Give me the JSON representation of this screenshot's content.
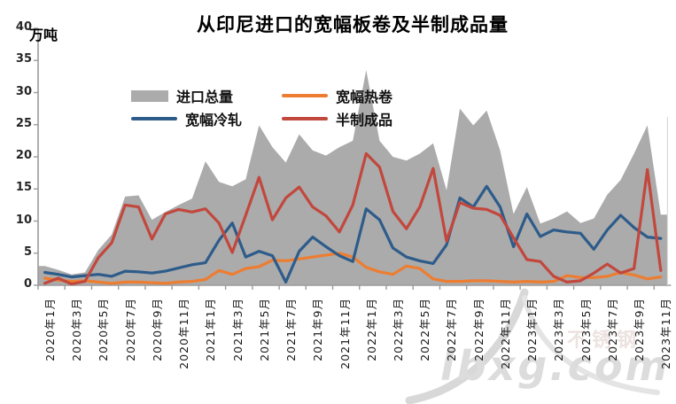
{
  "title": "从印尼进口的宽幅板卷及半制成品量",
  "y_axis": {
    "unit_label": "万吨",
    "tick_values": [
      0,
      5,
      10,
      15,
      20,
      25,
      30,
      35,
      40
    ]
  },
  "x_axis": {
    "tick_labels": [
      "2020年1月",
      "2020年3月",
      "2020年5月",
      "2020年7月",
      "2020年9月",
      "2020年11月",
      "2021年1月",
      "2021年3月",
      "2021年5月",
      "2021年7月",
      "2021年9月",
      "2021年11月",
      "2022年1月",
      "2022年3月",
      "2022年5月",
      "2022年7月",
      "2022年9月",
      "2022年11月",
      "2023年1月",
      "2023年3月",
      "2023年5月",
      "2023年7月",
      "2023年9月",
      "2023年11月"
    ]
  },
  "legend": [
    {
      "label": "进口总量",
      "color": "#ABABAB",
      "swatch": "area"
    },
    {
      "label": "宽幅热卷",
      "color": "#ED7D31",
      "swatch": "line"
    },
    {
      "label": "宽幅冷轧",
      "color": "#2E5C8A",
      "swatch": "line"
    },
    {
      "label": "半制成品",
      "color": "#C2473D",
      "swatch": "line"
    }
  ],
  "watermark": {
    "text": "lbxg.com",
    "side_text": "不锈钢"
  },
  "chart_data": {
    "type": "area",
    "note": "gray total is an area series; other three are lines; y in 万吨 (10k tons)",
    "ylim": [
      0,
      40
    ],
    "x": [
      "2020年1月",
      "2020年2月",
      "2020年3月",
      "2020年4月",
      "2020年5月",
      "2020年6月",
      "2020年7月",
      "2020年8月",
      "2020年9月",
      "2020年10月",
      "2020年11月",
      "2020年12月",
      "2021年1月",
      "2021年2月",
      "2021年3月",
      "2021年4月",
      "2021年5月",
      "2021年6月",
      "2021年7月",
      "2021年8月",
      "2021年9月",
      "2021年10月",
      "2021年11月",
      "2021年12月",
      "2022年1月",
      "2022年2月",
      "2022年3月",
      "2022年4月",
      "2022年5月",
      "2022年6月",
      "2022年7月",
      "2022年8月",
      "2022年9月",
      "2022年10月",
      "2022年11月",
      "2022年12月",
      "2023年1月",
      "2023年2月",
      "2023年3月",
      "2023年4月",
      "2023年5月",
      "2023年6月",
      "2023年7月",
      "2023年8月",
      "2023年9月",
      "2023年10月",
      "2023年11月"
    ],
    "series": [
      {
        "name": "进口总量",
        "type": "area",
        "color": "#ABABAB",
        "values": [
          3.0,
          2.4,
          1.7,
          2.0,
          5.5,
          7.9,
          13.8,
          14.0,
          10.2,
          11.4,
          12.5,
          13.5,
          19.3,
          16.1,
          15.4,
          16.5,
          24.9,
          21.5,
          19.1,
          23.5,
          21.0,
          20.2,
          21.5,
          22.5,
          33.5,
          22.5,
          20.0,
          19.4,
          20.5,
          22.1,
          14.8,
          27.5,
          24.9,
          27.2,
          21.0,
          11.1,
          15.3,
          9.6,
          10.4,
          11.5,
          9.7,
          10.4,
          14.1,
          16.4,
          20.5,
          24.9,
          11.0
        ]
      },
      {
        "name": "宽幅热卷",
        "type": "line",
        "color": "#ED7D31",
        "values": [
          1.1,
          0.8,
          0.6,
          0.7,
          0.5,
          0.3,
          0.5,
          0.5,
          0.4,
          0.3,
          0.5,
          0.6,
          0.9,
          2.3,
          1.7,
          2.6,
          2.9,
          3.9,
          3.8,
          4.1,
          4.4,
          4.7,
          5.0,
          4.4,
          2.8,
          2.1,
          1.7,
          3.0,
          2.6,
          1.0,
          0.6,
          0.6,
          0.7,
          0.7,
          0.6,
          0.5,
          0.6,
          0.5,
          0.6,
          1.5,
          1.2,
          1.2,
          1.4,
          2.0,
          1.6,
          1.0,
          1.3
        ]
      },
      {
        "name": "宽幅冷轧",
        "type": "line",
        "color": "#2E5C8A",
        "values": [
          2.0,
          1.7,
          1.3,
          1.5,
          1.7,
          1.4,
          2.2,
          2.1,
          1.9,
          2.2,
          2.7,
          3.2,
          3.5,
          7.0,
          9.7,
          4.4,
          5.3,
          4.6,
          0.5,
          5.3,
          7.5,
          6.0,
          4.6,
          3.7,
          11.9,
          10.2,
          5.8,
          4.4,
          3.8,
          3.4,
          6.3,
          13.6,
          12.2,
          15.4,
          12.2,
          6.0,
          11.1,
          7.6,
          8.6,
          8.3,
          8.1,
          5.6,
          8.6,
          10.9,
          9.0,
          7.5,
          7.3
        ]
      },
      {
        "name": "半制成品",
        "type": "line",
        "color": "#C2473D",
        "values": [
          0.3,
          1.1,
          0.2,
          0.6,
          4.3,
          6.6,
          12.5,
          12.2,
          7.2,
          11.1,
          11.8,
          11.4,
          11.9,
          9.7,
          5.1,
          10.9,
          16.8,
          10.2,
          13.6,
          15.3,
          12.2,
          10.8,
          8.3,
          12.5,
          20.5,
          18.4,
          11.5,
          8.8,
          12.2,
          18.2,
          6.9,
          12.9,
          12.0,
          11.8,
          10.9,
          7.4,
          4.0,
          3.7,
          1.4,
          0.5,
          0.7,
          1.9,
          3.3,
          1.9,
          2.6,
          18.0,
          2.3
        ]
      }
    ],
    "legend_position": "top-left-inside",
    "grid": false
  }
}
